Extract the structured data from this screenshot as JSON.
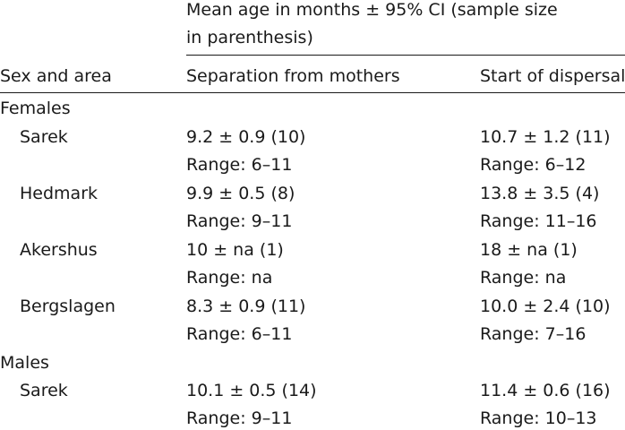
{
  "header": {
    "spanner_line1": "Mean age in months ± 95% CI (sample size",
    "spanner_line2": "in parenthesis)",
    "col_row": "Sex and area",
    "col_separation": "Separation from mothers",
    "col_dispersal": "Start of dispersal"
  },
  "groups": [
    {
      "label": "Females",
      "rows": [
        {
          "area": "Sarek",
          "sep": "9.2 ± 0.9 (10)",
          "sep_range": "Range: 6–11",
          "disp": "10.7 ± 1.2 (11)",
          "disp_range": "Range: 6–12"
        },
        {
          "area": "Hedmark",
          "sep": "9.9 ± 0.5 (8)",
          "sep_range": "Range: 9–11",
          "disp": "13.8 ± 3.5 (4)",
          "disp_range": "Range: 11–16"
        },
        {
          "area": "Akershus",
          "sep": "10 ± na (1)",
          "sep_range": "Range: na",
          "disp": "18 ± na (1)",
          "disp_range": "Range: na"
        },
        {
          "area": "Bergslagen",
          "sep": "8.3 ± 0.9 (11)",
          "sep_range": "Range: 6–11",
          "disp": "10.0 ± 2.4 (10)",
          "disp_range": "Range: 7–16"
        }
      ]
    },
    {
      "label": "Males",
      "rows": [
        {
          "area": "Sarek",
          "sep": "10.1 ± 0.5 (14)",
          "sep_range": "Range: 9–11",
          "disp": "11.4 ± 0.6 (16)",
          "disp_range": "Range: 10–13"
        }
      ]
    }
  ]
}
